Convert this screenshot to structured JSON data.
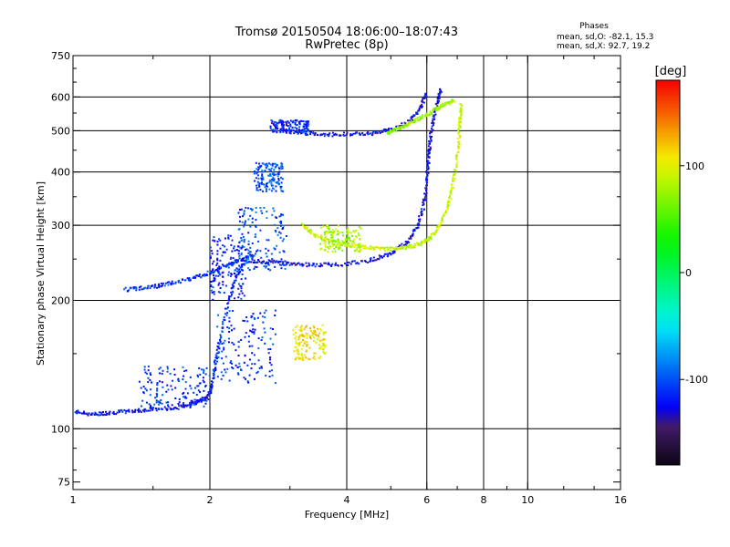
{
  "header": {
    "title_line1": "Tromsø 20150504 18:06:00–18:07:43",
    "title_line2": "RwPretec (8p)"
  },
  "stats": {
    "heading": "Phases",
    "line_o": "mean, sd,O:  -82.1, 15.3",
    "line_x": "mean, sd,X:  92.7, 19.2"
  },
  "colorbar": {
    "unit": "[deg]",
    "ticks": [
      "100",
      "0",
      "-100"
    ],
    "tick_values": [
      100,
      0,
      -100
    ],
    "range": [
      -180,
      180
    ],
    "colormap": "rainbow"
  },
  "chart_data": {
    "type": "scatter",
    "xlabel": "Frequency [MHz]",
    "ylabel": "Stationary phase Virtual Height [km]",
    "x_scale": "log",
    "y_scale": "log",
    "xlim": [
      1,
      16
    ],
    "ylim": [
      72,
      750
    ],
    "x_ticks": [
      1,
      2,
      4,
      6,
      8,
      10,
      16
    ],
    "x_tick_labels": [
      "1",
      "2",
      "4",
      "6",
      "8",
      "10",
      "16"
    ],
    "x_minor_ticks": [
      1.5,
      3,
      5,
      7,
      9,
      12,
      14
    ],
    "y_ticks": [
      75,
      100,
      200,
      300,
      400,
      500,
      600,
      750
    ],
    "y_tick_labels": [
      "75",
      "100",
      "200",
      "300",
      "400",
      "500",
      "600",
      "750"
    ],
    "y_minor_ticks": [
      80,
      90,
      150,
      250,
      350,
      450,
      550,
      650,
      700
    ],
    "grid_x": [
      2,
      4,
      6,
      8,
      10
    ],
    "grid_y": [
      100,
      200,
      300,
      400,
      500,
      600
    ],
    "traces": [
      {
        "x": [
          1.0,
          1.1,
          1.2,
          1.35,
          1.5,
          1.7,
          1.85,
          1.97,
          2.02
        ],
        "y": [
          110,
          108,
          109,
          110,
          111,
          112,
          115,
          118,
          125
        ],
        "phase": -120
      },
      {
        "x": [
          2.02,
          2.05,
          2.1,
          2.2,
          2.3,
          2.4
        ],
        "y": [
          125,
          140,
          160,
          200,
          230,
          250
        ],
        "phase": -110
      },
      {
        "x": [
          1.3,
          1.45,
          1.6,
          1.8,
          1.95,
          2.1,
          2.3,
          2.5
        ],
        "y": [
          212,
          214,
          218,
          224,
          230,
          238,
          248,
          255
        ],
        "phase": -110
      },
      {
        "x": [
          2.45,
          2.7,
          3.0,
          3.4,
          3.9,
          4.5,
          5.0,
          5.4,
          5.7,
          5.9,
          6.0,
          6.05,
          6.1,
          6.2,
          6.35,
          6.45
        ],
        "y": [
          248,
          246,
          244,
          242,
          243,
          248,
          258,
          272,
          295,
          330,
          380,
          430,
          470,
          530,
          590,
          625
        ],
        "phase": -125
      },
      {
        "x": [
          3.2,
          3.4,
          3.7,
          4.0,
          4.4,
          4.8,
          5.2,
          5.6,
          6.0,
          6.3,
          6.6,
          6.8,
          6.95,
          7.05,
          7.1,
          7.15
        ],
        "y": [
          300,
          285,
          275,
          270,
          266,
          264,
          265,
          268,
          276,
          290,
          320,
          360,
          410,
          470,
          530,
          580
        ],
        "phase": 90
      },
      {
        "x": [
          2.9,
          3.2,
          3.6,
          4.1,
          4.6,
          5.1,
          5.5,
          5.8,
          6.0
        ],
        "y": [
          500,
          494,
          490,
          490,
          494,
          505,
          525,
          565,
          610
        ],
        "phase": -125
      },
      {
        "x": [
          4.9,
          5.2,
          5.5,
          5.9,
          6.3,
          6.6,
          6.9
        ],
        "y": [
          492,
          505,
          520,
          540,
          562,
          578,
          590
        ],
        "phase": 75
      }
    ],
    "clusters": [
      {
        "x": [
          2.0,
          2.4
        ],
        "y": [
          200,
          285
        ],
        "phase": -115
      },
      {
        "x": [
          2.3,
          2.95
        ],
        "y": [
          235,
          330
        ],
        "phase": -100
      },
      {
        "x": [
          2.05,
          2.8
        ],
        "y": [
          128,
          190
        ],
        "phase": -110
      },
      {
        "x": [
          1.4,
          2.0
        ],
        "y": [
          112,
          140
        ],
        "phase": -110
      },
      {
        "x": [
          3.05,
          3.6
        ],
        "y": [
          145,
          175
        ],
        "phase": 110
      },
      {
        "x": [
          2.5,
          2.9
        ],
        "y": [
          360,
          420
        ],
        "phase": -100
      },
      {
        "x": [
          2.7,
          3.3
        ],
        "y": [
          495,
          530
        ],
        "phase": -115
      },
      {
        "x": [
          3.5,
          4.3
        ],
        "y": [
          260,
          300
        ],
        "phase": 80
      }
    ]
  }
}
